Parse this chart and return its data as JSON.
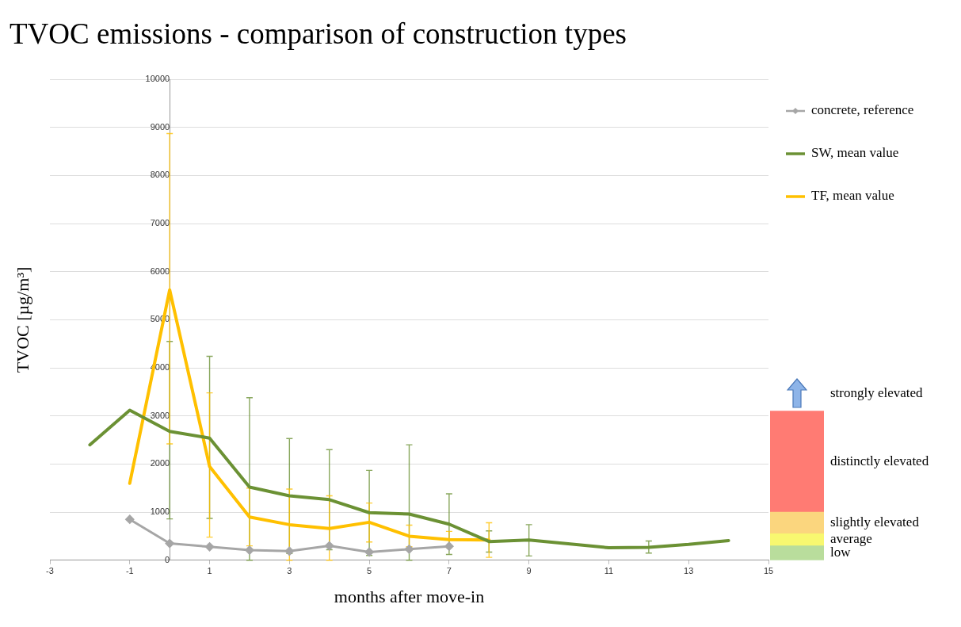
{
  "chart_data": [
    {
      "type": "line",
      "title": "TVOC emissions - comparison of construction types",
      "xlabel": "months after move-in",
      "ylabel": "TVOC [µg/m³]",
      "xlim": [
        -3,
        15
      ],
      "xticks": [
        -3,
        -1,
        1,
        3,
        5,
        7,
        9,
        11,
        13,
        15
      ],
      "ylim": [
        0,
        10000
      ],
      "yticks": [
        0,
        1000,
        2000,
        3000,
        4000,
        5000,
        6000,
        7000,
        8000,
        9000,
        10000
      ],
      "grid": "y",
      "legend": "top right",
      "series": [
        {
          "name": "concrete, reference",
          "color": "#a6a6a6",
          "marker": "diamond",
          "x": [
            -1,
            0,
            1,
            2,
            3,
            4,
            5,
            6,
            7
          ],
          "values": [
            850,
            350,
            280,
            210,
            190,
            300,
            170,
            230,
            290
          ]
        },
        {
          "name": "SW, mean value",
          "color": "#6b9134",
          "x": [
            -2,
            -1,
            0,
            1,
            2,
            3,
            4,
            5,
            6,
            7,
            8,
            9,
            11,
            12,
            13,
            14
          ],
          "values": [
            2400,
            3120,
            2680,
            2540,
            1520,
            1340,
            1260,
            990,
            960,
            750,
            390,
            420,
            260,
            270,
            330,
            410
          ],
          "errors": [
            null,
            null,
            [
              860,
              4550
            ],
            [
              870,
              4240
            ],
            [
              0,
              3380
            ],
            [
              140,
              2530
            ],
            [
              220,
              2300
            ],
            [
              100,
              1870
            ],
            [
              0,
              2400
            ],
            [
              120,
              1380
            ],
            [
              170,
              610
            ],
            [
              90,
              740
            ],
            null,
            [
              150,
              400
            ],
            null,
            null
          ]
        },
        {
          "name": "TF, mean value",
          "color": "#ffc000",
          "x": [
            -1,
            0,
            1,
            2,
            3,
            4,
            5,
            6,
            7,
            8
          ],
          "values": [
            1600,
            5620,
            1950,
            900,
            740,
            660,
            790,
            500,
            430,
            420
          ],
          "errors": [
            null,
            [
              2420,
              8870
            ],
            [
              480,
              3480
            ],
            [
              300,
              1500
            ],
            [
              0,
              1480
            ],
            [
              0,
              1340
            ],
            [
              380,
              1190
            ],
            [
              280,
              730
            ],
            [
              260,
              600
            ],
            [
              60,
              780
            ]
          ]
        }
      ]
    },
    {
      "type": "bar",
      "stacked": true,
      "categories": [
        null
      ],
      "ylim": [
        0,
        10000
      ],
      "yticks": [
        0,
        1000,
        2000,
        3000,
        4000,
        5000,
        6000,
        7000,
        8000,
        9000,
        10000
      ],
      "tick_labels": false,
      "series": [
        {
          "name": "low",
          "color": "#b9dd9c",
          "values": [
            300
          ]
        },
        {
          "name": "average",
          "color": "#f8f870",
          "values": [
            250
          ]
        },
        {
          "name": "slightly elevated",
          "color": "#fbd67e",
          "values": [
            450
          ]
        },
        {
          "name": "distinctly elevated",
          "color": "#ff7b73",
          "values": [
            2100
          ]
        }
      ],
      "annotations": [
        "strongly elevated"
      ]
    }
  ]
}
